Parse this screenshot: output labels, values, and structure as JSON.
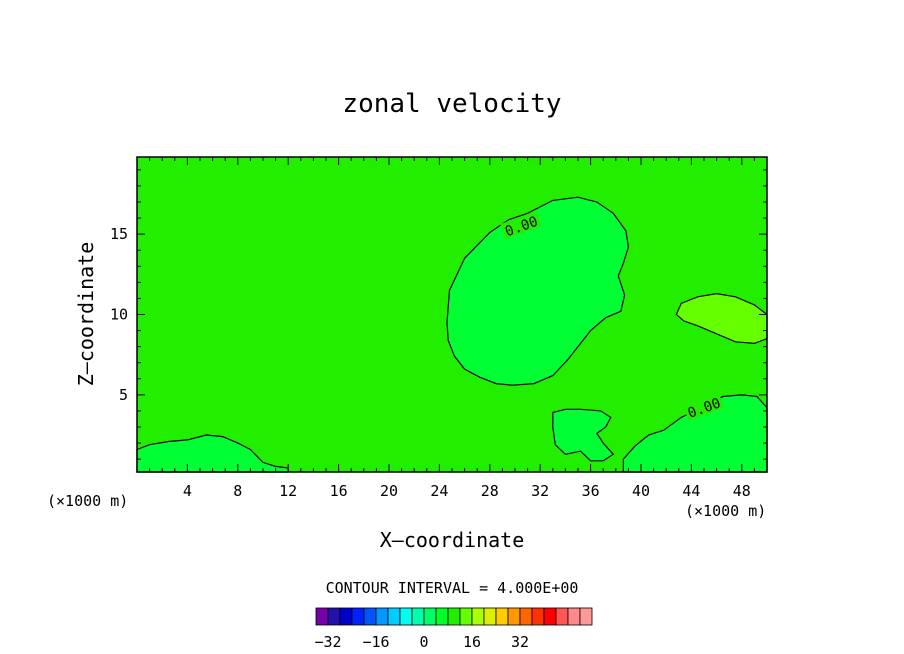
{
  "chart_data": {
    "type": "contour",
    "title": "zonal velocity",
    "xlabel": "X–coordinate",
    "ylabel": "Z–coordinate",
    "x_unit": "(×1000 m)",
    "x_unit_right": "(×1000 m)",
    "xlim": [
      0,
      50
    ],
    "ylim": [
      0.2,
      19.8
    ],
    "x_ticks": [
      4,
      8,
      12,
      16,
      20,
      24,
      28,
      32,
      36,
      40,
      44,
      48
    ],
    "y_ticks": [
      5,
      10,
      15
    ],
    "contour_interval_text": "CONTOUR INTERVAL = 4.000E+00",
    "contour_interval": 4.0,
    "contour_labels": [
      {
        "text": "0.00",
        "x": 30.5,
        "z": 15.5,
        "angle": -20
      },
      {
        "text": "0.00",
        "x": 45.0,
        "z": 4.2,
        "angle": -20
      }
    ],
    "background_color": "#22ee00",
    "regions": [
      {
        "name": "positive-core-upper",
        "color": "#00ff33",
        "points": [
          [
            24.6,
            9.5
          ],
          [
            24.8,
            11.5
          ],
          [
            26,
            13.5
          ],
          [
            28,
            15.1
          ],
          [
            29.5,
            15.9
          ],
          [
            31,
            16.3
          ],
          [
            33,
            17.1
          ],
          [
            35,
            17.3
          ],
          [
            36.5,
            17
          ],
          [
            37.8,
            16.3
          ],
          [
            38.8,
            15.2
          ],
          [
            39,
            14.2
          ],
          [
            38.6,
            13.2
          ],
          [
            38.2,
            12.4
          ],
          [
            38.7,
            11.2
          ],
          [
            38.4,
            10.2
          ],
          [
            37.2,
            9.8
          ],
          [
            36,
            9
          ],
          [
            35,
            8
          ],
          [
            34.2,
            7.2
          ],
          [
            33,
            6.2
          ],
          [
            31.5,
            5.7
          ],
          [
            29.8,
            5.6
          ],
          [
            28.5,
            5.7
          ],
          [
            27.2,
            6.1
          ],
          [
            26,
            6.6
          ],
          [
            25.2,
            7.4
          ],
          [
            24.7,
            8.4
          ]
        ]
      },
      {
        "name": "weak-maximum-right",
        "color": "#66ff00",
        "points": [
          [
            42.8,
            10
          ],
          [
            43.2,
            10.7
          ],
          [
            44.5,
            11.1
          ],
          [
            46,
            11.3
          ],
          [
            47.5,
            11.1
          ],
          [
            49,
            10.6
          ],
          [
            50,
            10
          ],
          [
            50,
            8.5
          ],
          [
            49,
            8.2
          ],
          [
            47.5,
            8.3
          ],
          [
            46,
            8.8
          ],
          [
            44.5,
            9.3
          ],
          [
            43.4,
            9.6
          ]
        ]
      },
      {
        "name": "lower-right-patch",
        "color": "#00ff33",
        "points": [
          [
            38.6,
            1
          ],
          [
            39.5,
            1.8
          ],
          [
            40.6,
            2.5
          ],
          [
            41.8,
            2.8
          ],
          [
            42.5,
            3.2
          ],
          [
            43.2,
            3.6
          ],
          [
            44,
            3.9
          ],
          [
            45,
            4.3
          ],
          [
            46.5,
            4.9
          ],
          [
            48,
            5
          ],
          [
            49.2,
            4.9
          ],
          [
            50,
            4.2
          ],
          [
            50,
            0.2
          ],
          [
            38.6,
            0.2
          ]
        ]
      },
      {
        "name": "lower-mid-patch",
        "color": "#00ff33",
        "points": [
          [
            33,
            3.9
          ],
          [
            34,
            4.1
          ],
          [
            35.2,
            4.1
          ],
          [
            36.8,
            4
          ],
          [
            37.6,
            3.6
          ],
          [
            37.2,
            3
          ],
          [
            36.5,
            2.6
          ],
          [
            37,
            2
          ],
          [
            37.8,
            1.3
          ],
          [
            37,
            0.9
          ],
          [
            36,
            0.9
          ],
          [
            35.2,
            1.5
          ],
          [
            34,
            1.3
          ],
          [
            33.2,
            1.9
          ],
          [
            33,
            3
          ]
        ]
      },
      {
        "name": "surface-left-patch",
        "color": "#00ff33",
        "points": [
          [
            0,
            1.6
          ],
          [
            1,
            1.9
          ],
          [
            2.5,
            2.1
          ],
          [
            4,
            2.2
          ],
          [
            5.5,
            2.5
          ],
          [
            6.8,
            2.4
          ],
          [
            8,
            2
          ],
          [
            9,
            1.6
          ],
          [
            9.5,
            1.2
          ],
          [
            10,
            0.8
          ],
          [
            11,
            0.55
          ],
          [
            12,
            0.45
          ],
          [
            12,
            0.2
          ],
          [
            0,
            0.2
          ]
        ]
      }
    ]
  }
}
